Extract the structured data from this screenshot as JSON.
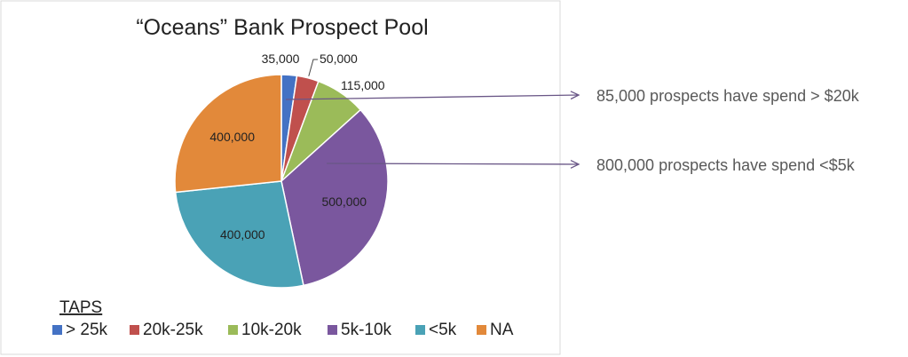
{
  "chart_data": {
    "type": "pie",
    "title": "“Oceans” Bank Prospect Pool",
    "legend_title": "TAPS",
    "legend_position": "bottom",
    "categories": [
      "> 25k",
      "20k-25k",
      "10k-20k",
      "5k-10k",
      "<5k",
      "NA"
    ],
    "values": [
      35000,
      50000,
      115000,
      500000,
      400000,
      400000
    ],
    "data_labels": [
      "35,000",
      "50,000",
      "115,000",
      "500,000",
      "400,000",
      "400,000"
    ],
    "colors": [
      "#4472C4",
      "#C0504D",
      "#9BBB59",
      "#7A579E",
      "#4AA2B6",
      "#E2893A"
    ]
  },
  "annotations": [
    {
      "text": "85,000 prospects have spend > $20k"
    },
    {
      "text": "800,000 prospects have spend <$5k"
    }
  ]
}
